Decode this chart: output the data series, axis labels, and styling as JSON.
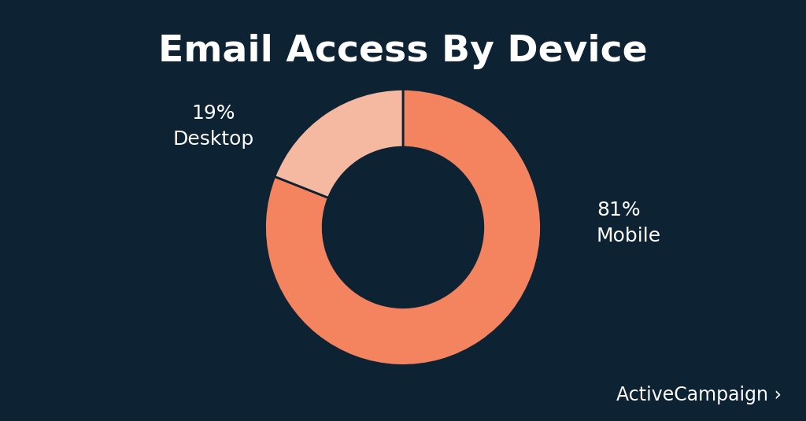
{
  "title": "Email Access By Device",
  "background_color": "#0d2233",
  "slices": [
    81,
    19
  ],
  "labels": [
    "Mobile",
    "Desktop"
  ],
  "colors": [
    "#f4845f",
    "#f5b8a0"
  ],
  "text_color": "#ffffff",
  "title_fontsize": 34,
  "label_fontsize": 18,
  "donut_width": 0.42,
  "watermark": "ActiveCampaign ›",
  "watermark_fontsize": 17,
  "mobile_label": "81%\nMobile",
  "desktop_label": "19%\nDesktop"
}
